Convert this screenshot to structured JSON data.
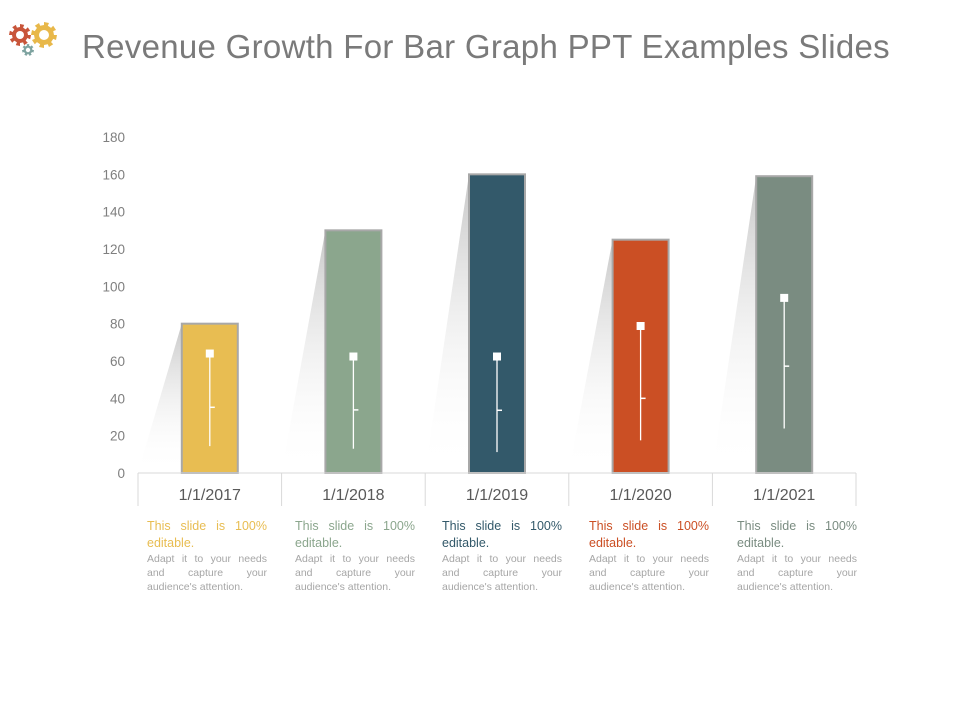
{
  "title": "Revenue Growth For Bar Graph PPT Examples Slides",
  "icons": {
    "logo": "gears-icon"
  },
  "colors": {
    "title_text": "#7a7a7a",
    "gear_red": "#c8553a",
    "gear_gold": "#e8b84a",
    "gear_teal": "#7ea3a0",
    "body_text": "#a6a6a6"
  },
  "chart_data": {
    "type": "bar",
    "categories": [
      "1/1/2017",
      "1/1/2018",
      "1/1/2019",
      "1/1/2020",
      "1/1/2021"
    ],
    "values": [
      80,
      130,
      160,
      125,
      159
    ],
    "colors": [
      "#e8bd52",
      "#8ba68d",
      "#33596a",
      "#cb4f24",
      "#7a8c81"
    ],
    "ylim": [
      0,
      180
    ],
    "yticks": [
      0,
      20,
      40,
      60,
      80,
      100,
      120,
      140,
      160,
      180
    ],
    "grid": false,
    "title": "",
    "xlabel": "",
    "ylabel": ""
  },
  "descriptions": [
    {
      "headline": "This slide is 100% editable.",
      "body": "Adapt it to your needs and capture your audience's attention.",
      "color": "#e8bd52"
    },
    {
      "headline": "This slide is 100% editable.",
      "body": "Adapt it to your needs and capture your audience's attention.",
      "color": "#8ba68d"
    },
    {
      "headline": "This slide is 100% editable.",
      "body": "Adapt it to your needs and capture your audience's attention.",
      "color": "#33596a"
    },
    {
      "headline": "This slide is 100% editable.",
      "body": "Adapt it to your needs and capture your audience's attention.",
      "color": "#cb4f24"
    },
    {
      "headline": "This slide is 100% editable.",
      "body": "Adapt it to your needs and capture your audience's attention.",
      "color": "#7a8c81"
    }
  ]
}
